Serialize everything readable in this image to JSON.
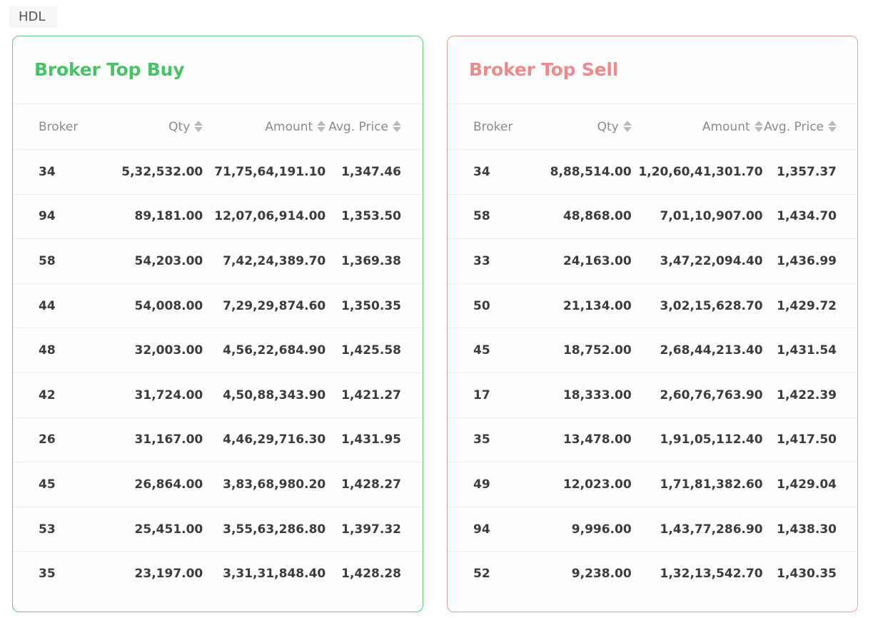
{
  "symbol": "HDL",
  "buy_panel": {
    "title": "Broker Top Buy",
    "columns": {
      "broker": "Broker",
      "qty": "Qty",
      "amount": "Amount",
      "avg": "Avg. Price"
    },
    "rows": [
      {
        "broker": "34",
        "qty": "5,32,532.00",
        "amount": "71,75,64,191.10",
        "avg": "1,347.46"
      },
      {
        "broker": "94",
        "qty": "89,181.00",
        "amount": "12,07,06,914.00",
        "avg": "1,353.50"
      },
      {
        "broker": "58",
        "qty": "54,203.00",
        "amount": "7,42,24,389.70",
        "avg": "1,369.38"
      },
      {
        "broker": "44",
        "qty": "54,008.00",
        "amount": "7,29,29,874.60",
        "avg": "1,350.35"
      },
      {
        "broker": "48",
        "qty": "32,003.00",
        "amount": "4,56,22,684.90",
        "avg": "1,425.58"
      },
      {
        "broker": "42",
        "qty": "31,724.00",
        "amount": "4,50,88,343.90",
        "avg": "1,421.27"
      },
      {
        "broker": "26",
        "qty": "31,167.00",
        "amount": "4,46,29,716.30",
        "avg": "1,431.95"
      },
      {
        "broker": "45",
        "qty": "26,864.00",
        "amount": "3,83,68,980.20",
        "avg": "1,428.27"
      },
      {
        "broker": "53",
        "qty": "25,451.00",
        "amount": "3,55,63,286.80",
        "avg": "1,397.32"
      },
      {
        "broker": "35",
        "qty": "23,197.00",
        "amount": "3,31,31,848.40",
        "avg": "1,428.28"
      }
    ]
  },
  "sell_panel": {
    "title": "Broker Top Sell",
    "columns": {
      "broker": "Broker",
      "qty": "Qty",
      "amount": "Amount",
      "avg": "Avg. Price"
    },
    "rows": [
      {
        "broker": "34",
        "qty": "8,88,514.00",
        "amount": "1,20,60,41,301.70",
        "avg": "1,357.37"
      },
      {
        "broker": "58",
        "qty": "48,868.00",
        "amount": "7,01,10,907.00",
        "avg": "1,434.70"
      },
      {
        "broker": "33",
        "qty": "24,163.00",
        "amount": "3,47,22,094.40",
        "avg": "1,436.99"
      },
      {
        "broker": "50",
        "qty": "21,134.00",
        "amount": "3,02,15,628.70",
        "avg": "1,429.72"
      },
      {
        "broker": "45",
        "qty": "18,752.00",
        "amount": "2,68,44,213.40",
        "avg": "1,431.54"
      },
      {
        "broker": "17",
        "qty": "18,333.00",
        "amount": "2,60,76,763.90",
        "avg": "1,422.39"
      },
      {
        "broker": "35",
        "qty": "13,478.00",
        "amount": "1,91,05,112.40",
        "avg": "1,417.50"
      },
      {
        "broker": "49",
        "qty": "12,023.00",
        "amount": "1,71,81,382.60",
        "avg": "1,429.04"
      },
      {
        "broker": "94",
        "qty": "9,996.00",
        "amount": "1,43,77,286.90",
        "avg": "1,438.30"
      },
      {
        "broker": "52",
        "qty": "9,238.00",
        "amount": "1,32,13,542.70",
        "avg": "1,430.35"
      }
    ]
  },
  "colors": {
    "buy_accent": "#46c464",
    "sell_accent": "#f1898a"
  },
  "icons": {
    "sort": "sort-icon"
  }
}
